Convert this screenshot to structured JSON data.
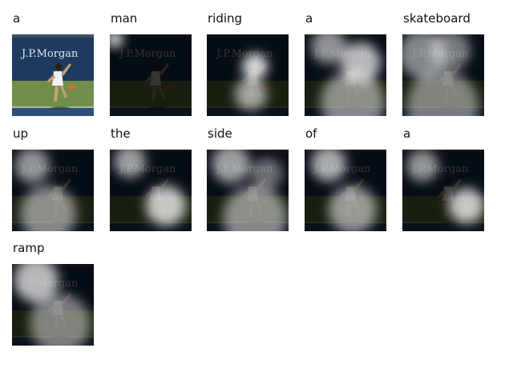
{
  "figure": {
    "tokens": [
      {
        "word": "a",
        "kind": "original"
      },
      {
        "word": "man",
        "kind": "attention"
      },
      {
        "word": "riding",
        "kind": "attention"
      },
      {
        "word": "a",
        "kind": "attention"
      },
      {
        "word": "skateboard",
        "kind": "attention"
      },
      {
        "word": "up",
        "kind": "attention"
      },
      {
        "word": "the",
        "kind": "attention"
      },
      {
        "word": "side",
        "kind": "attention"
      },
      {
        "word": "of",
        "kind": "attention"
      },
      {
        "word": "a",
        "kind": "attention"
      },
      {
        "word": "ramp",
        "kind": "attention"
      }
    ],
    "scene_banner_text": "J.P.Morgan",
    "colors": {
      "court_green": "#6f8f4a",
      "court_blue": "#2c4f7a",
      "wall_navy": "#1f3a5f",
      "attention_white": "#ffffff"
    }
  }
}
